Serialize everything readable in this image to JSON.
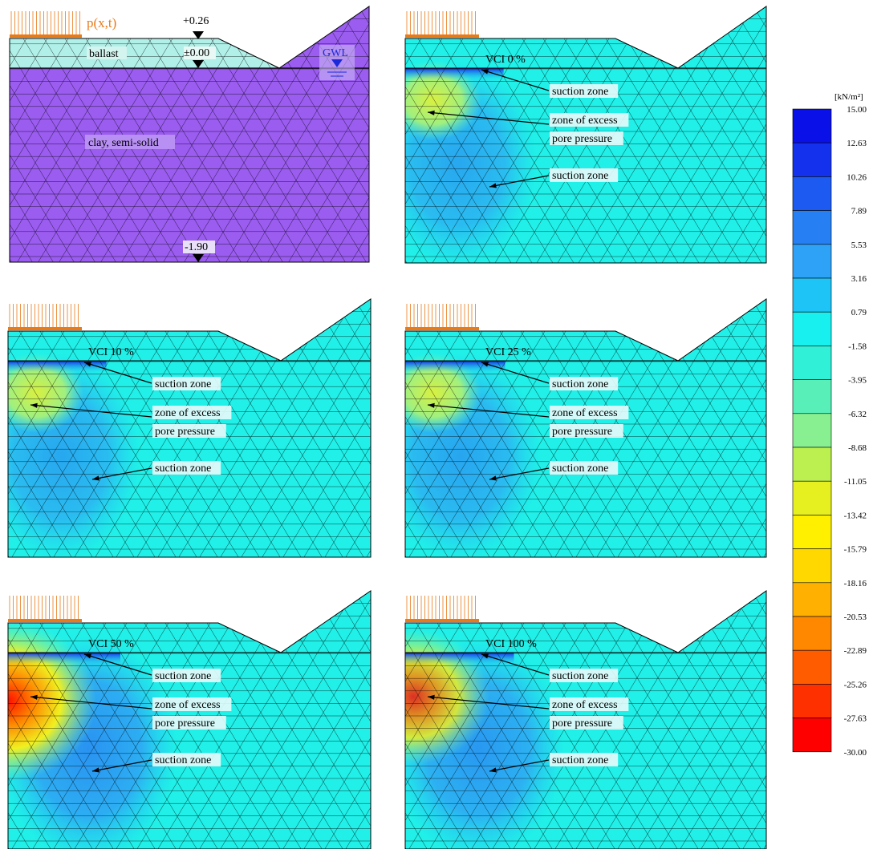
{
  "load_label": "p(x,t)",
  "elevations": {
    "top": "+0.26",
    "zero": "±0.00",
    "bottom": "-1.90"
  },
  "gwl_label": "GWL",
  "materials": {
    "ballast": "ballast",
    "clay": "clay, semi-solid"
  },
  "annotations": {
    "suction_zone": "suction zone",
    "excess_line1": "zone of excess",
    "excess_line2": "pore pressure"
  },
  "panels": [
    {
      "id": "geometry",
      "title": "",
      "intensity": 0
    },
    {
      "id": "vci0",
      "title": "VCI 0 %",
      "intensity": 0.42
    },
    {
      "id": "vci10",
      "title": "VCI 10 %",
      "intensity": 0.42
    },
    {
      "id": "vci25",
      "title": "VCI 25 %",
      "intensity": 0.48
    },
    {
      "id": "vci50",
      "title": "VCI 50 %",
      "intensity": 1.0
    },
    {
      "id": "vci100",
      "title": "VCI 100 %",
      "intensity": 0.85
    }
  ],
  "legend": {
    "unit": "[kN/m²]",
    "ticks": [
      "15.00",
      "12.63",
      "10.26",
      "7.89",
      "5.53",
      "3.16",
      "0.79",
      "-1.58",
      "-3.95",
      "-6.32",
      "-8.68",
      "-11.05",
      "-13.42",
      "-15.79",
      "-18.16",
      "-20.53",
      "-22.89",
      "-25.26",
      "-27.63",
      "-30.00"
    ],
    "colors": [
      "#0a10e8",
      "#1432ee",
      "#1c5af2",
      "#2680f4",
      "#2ea2f6",
      "#1ec4f6",
      "#18f0f0",
      "#30f0d8",
      "#58f0b8",
      "#88f090",
      "#bcf050",
      "#e6f020",
      "#fff000",
      "#ffd800",
      "#ffb000",
      "#ff8800",
      "#ff5c00",
      "#ff3000",
      "#ff0000"
    ],
    "mesh_color": "#20f0e8",
    "clay_color": "#9b5cf0",
    "ballast_color": "#b0f0e8"
  }
}
